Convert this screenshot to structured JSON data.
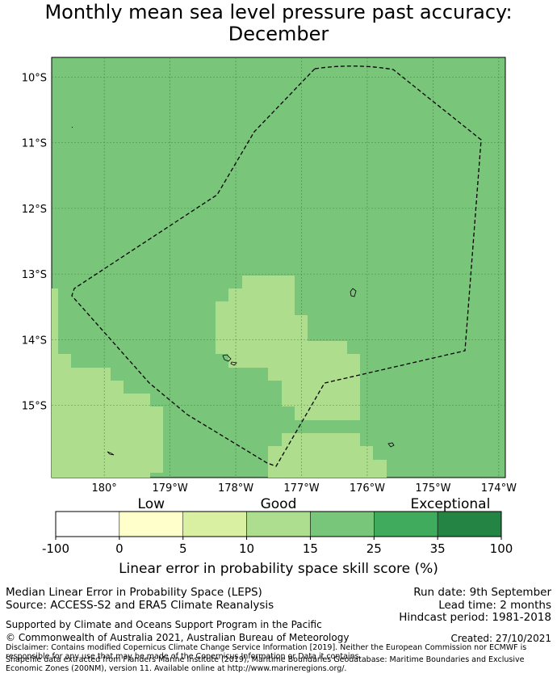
{
  "title_line1": "Monthly mean sea level pressure past accuracy:",
  "title_line2": "December",
  "map": {
    "lat_labels": [
      "10°S",
      "11°S",
      "12°S",
      "13°S",
      "14°S",
      "15°S"
    ],
    "lon_labels": [
      "180°",
      "179°W",
      "178°W",
      "177°W",
      "176°W",
      "175°W",
      "174°W"
    ],
    "lat_values": [
      -10,
      -11,
      -12,
      -13,
      -14,
      -15
    ],
    "lon_values": [
      180,
      -179,
      -178,
      -177,
      -176,
      -175,
      -174
    ],
    "lon_range": [
      179.2,
      -173.9
    ],
    "lat_range": [
      -9.7,
      -16.1
    ],
    "background_color": "#79c67a",
    "patch_color": "#aedd8e",
    "gridline_color": "#2d6a2d",
    "zone_line_color": "#000000"
  },
  "colorbar": {
    "categories": [
      "Low",
      "Good",
      "Exceptional"
    ],
    "ticks": [
      "-100",
      "0",
      "5",
      "10",
      "15",
      "25",
      "35",
      "100"
    ],
    "colors": [
      "#ffffff",
      "#ffffcc",
      "#d9f0a3",
      "#addd8e",
      "#78c679",
      "#41ab5d",
      "#238443"
    ],
    "label": "Linear error in probability space skill score (%)"
  },
  "footer": {
    "method": "Median Linear Error in Probability Space (LEPS)",
    "source": "Source: ACCESS-S2 and ERA5 Climate Reanalysis",
    "run_date": "Run date: 9th September",
    "lead_time": "Lead time: 2 months",
    "hindcast": "Hindcast period: 1981-2018",
    "support": "Supported by Climate and Oceans Support Program in the Pacific",
    "copyright": "© Commonwealth of Australia 2021, Australian Bureau of Meteorology",
    "created": "Created: 27/10/2021",
    "disclaimer": "Disclaimer: Contains modified Copernicus Climate Change Service Information [2019]. Neither the European Commission nor ECMWF is responsible for any use that may be made of the Copernicus Information or Data it contains.",
    "shapefile": "Shapefile data extracted from Flanders Marine Institute (2019), Maritime Boundaries Geodatabase: Maritime Boundaries and Exclusive Economic Zones (200NM), version 11. Available online at http://www.marineregions.org/."
  }
}
